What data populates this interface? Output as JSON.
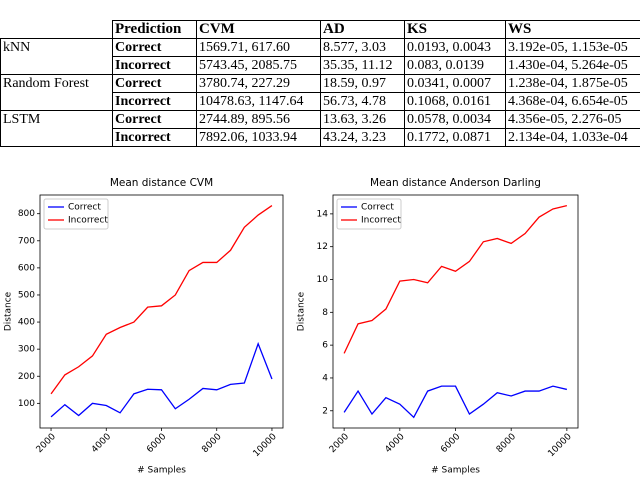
{
  "table": {
    "header": [
      "Prediction",
      "CVM",
      "AD",
      "KS",
      "WS"
    ],
    "groups": [
      {
        "method": "kNN",
        "rows": [
          [
            "Correct",
            "1569.71, 617.60",
            "8.577, 3.03",
            "0.0193, 0.0043",
            "3.192e-05, 1.153e-05"
          ],
          [
            "Incorrect",
            "5743.45, 2085.75",
            "35.35, 11.12",
            "0.083, 0.0139",
            "1.430e-04, 5.264e-05"
          ]
        ]
      },
      {
        "method": "Random Forest",
        "rows": [
          [
            "Correct",
            "3780.74, 227.29",
            "18.59, 0.97",
            "0.0341, 0.0007",
            "1.238e-04, 1.875e-05"
          ],
          [
            "Incorrect",
            "10478.63, 1147.64",
            "56.73, 4.78",
            "0.1068, 0.0161",
            "4.368e-04, 6.654e-05"
          ]
        ]
      },
      {
        "method": "LSTM",
        "rows": [
          [
            "Correct",
            "2744.89, 895.56",
            "13.63, 3.26",
            "0.0578, 0.0034",
            "4.356e-05, 2.276-05"
          ],
          [
            "Incorrect",
            "7892.06, 1033.94",
            "43.24, 3.23",
            "0.1772, 0.0871",
            "2.134e-04, 1.033e-04"
          ]
        ]
      }
    ]
  },
  "chart_data": [
    {
      "type": "line",
      "title": "Mean distance CVM",
      "x_label": "# Samples",
      "y_label": "Distance",
      "x": [
        2000,
        2500,
        3000,
        3500,
        4000,
        4500,
        5000,
        5500,
        6000,
        6500,
        7000,
        7500,
        8000,
        8500,
        9000,
        9500,
        10000
      ],
      "series": [
        {
          "name": "Correct",
          "color": "#0000ff",
          "values": [
            50,
            95,
            55,
            100,
            92,
            65,
            135,
            152,
            150,
            80,
            115,
            155,
            150,
            170,
            175,
            320,
            190
          ]
        },
        {
          "name": "Incorrect",
          "color": "#ff0000",
          "values": [
            135,
            205,
            235,
            275,
            355,
            380,
            400,
            455,
            460,
            500,
            590,
            620,
            620,
            665,
            750,
            795,
            830
          ]
        }
      ],
      "xlim": [
        1600,
        10400
      ],
      "ylim": [
        9,
        869
      ],
      "xticks": [
        2000,
        4000,
        6000,
        8000,
        10000
      ],
      "yticks": [
        100,
        200,
        300,
        400,
        500,
        600,
        700,
        800
      ],
      "legend": "upper left"
    },
    {
      "type": "line",
      "title": "Mean distance Anderson Darling",
      "x_label": "# Samples",
      "y_label": "Distance",
      "x": [
        2000,
        2500,
        3000,
        3500,
        4000,
        4500,
        5000,
        5500,
        6000,
        6500,
        7000,
        7500,
        8000,
        8500,
        9000,
        9500,
        10000
      ],
      "series": [
        {
          "name": "Correct",
          "color": "#0000ff",
          "values": [
            1.9,
            3.2,
            1.8,
            2.8,
            2.4,
            1.6,
            3.2,
            3.5,
            3.5,
            1.8,
            2.4,
            3.1,
            2.9,
            3.2,
            3.2,
            3.5,
            3.3
          ]
        },
        {
          "name": "Incorrect",
          "color": "#ff0000",
          "values": [
            5.5,
            7.3,
            7.5,
            8.2,
            9.9,
            10.0,
            9.8,
            10.8,
            10.5,
            11.1,
            12.3,
            12.5,
            12.2,
            12.8,
            13.8,
            14.3,
            14.5
          ]
        }
      ],
      "xlim": [
        1600,
        10400
      ],
      "ylim": [
        0.95,
        15.15
      ],
      "xticks": [
        2000,
        4000,
        6000,
        8000,
        10000
      ],
      "yticks": [
        2,
        4,
        6,
        8,
        10,
        12,
        14
      ],
      "legend": "upper left"
    }
  ]
}
